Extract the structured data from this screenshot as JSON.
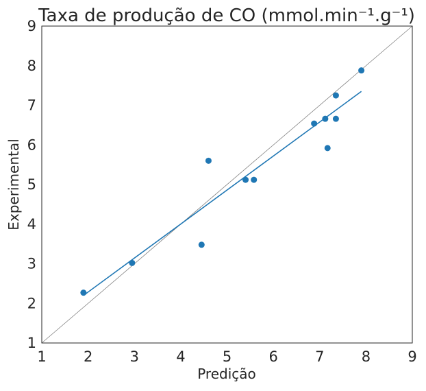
{
  "chart_data": {
    "type": "scatter",
    "title": "Taxa de produção de CO (mmol.min⁻¹.g⁻¹)",
    "xlabel": "Predição",
    "ylabel": "Experimental",
    "xlim": [
      1,
      9
    ],
    "ylim": [
      1,
      9
    ],
    "xticks": [
      "1",
      "2",
      "3",
      "4",
      "5",
      "6",
      "7",
      "8",
      "9"
    ],
    "yticks": [
      "1",
      "2",
      "3",
      "4",
      "5",
      "6",
      "7",
      "8",
      "9"
    ],
    "grid": false,
    "legend": "none",
    "series": [
      {
        "kind": "scatter",
        "color": "#1f77b4",
        "points": [
          {
            "x": 1.9,
            "y": 2.27
          },
          {
            "x": 2.95,
            "y": 3.02
          },
          {
            "x": 4.45,
            "y": 3.48
          },
          {
            "x": 4.6,
            "y": 5.6
          },
          {
            "x": 5.4,
            "y": 5.12
          },
          {
            "x": 5.58,
            "y": 5.12
          },
          {
            "x": 6.88,
            "y": 6.54
          },
          {
            "x": 7.12,
            "y": 6.66
          },
          {
            "x": 7.17,
            "y": 5.92
          },
          {
            "x": 7.35,
            "y": 7.25
          },
          {
            "x": 7.35,
            "y": 6.66
          },
          {
            "x": 7.9,
            "y": 7.88
          }
        ]
      },
      {
        "kind": "fit-line",
        "color": "#1f77b4",
        "x": [
          1.9,
          7.9
        ],
        "y": [
          2.2,
          7.35
        ]
      },
      {
        "kind": "identity-line",
        "color": "#808080",
        "x": [
          1,
          9
        ],
        "y": [
          1,
          9
        ]
      }
    ]
  }
}
